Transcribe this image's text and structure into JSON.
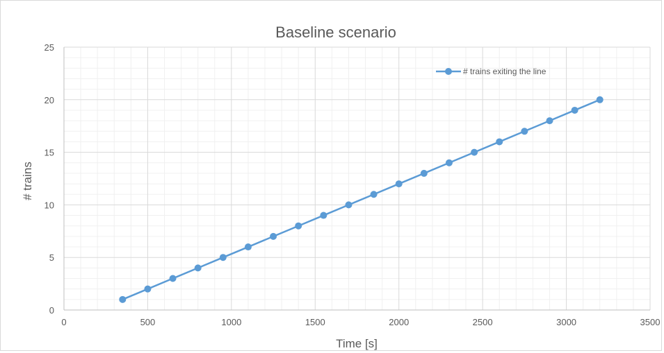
{
  "chart_data": {
    "type": "line",
    "title": "Baseline scenario",
    "xlabel": "Time [s]",
    "ylabel": "# trains",
    "xlim": [
      0,
      3500
    ],
    "ylim": [
      0,
      25
    ],
    "x_ticks": [
      0,
      500,
      1000,
      1500,
      2000,
      2500,
      3000,
      3500
    ],
    "y_ticks": [
      0,
      5,
      10,
      15,
      20,
      25
    ],
    "x_minor_step": 100,
    "y_minor_step": 1,
    "grid": true,
    "legend_position": "top-right",
    "series": [
      {
        "name": "# trains exiting the line",
        "color": "#5B9BD5",
        "marker": "circle",
        "x": [
          350,
          500,
          650,
          800,
          950,
          1100,
          1250,
          1400,
          1550,
          1700,
          1850,
          2000,
          2150,
          2300,
          2450,
          2600,
          2750,
          2900,
          3050,
          3200
        ],
        "y": [
          1,
          2,
          3,
          4,
          5,
          6,
          7,
          8,
          9,
          10,
          11,
          12,
          13,
          14,
          15,
          16,
          17,
          18,
          19,
          20
        ]
      }
    ]
  }
}
